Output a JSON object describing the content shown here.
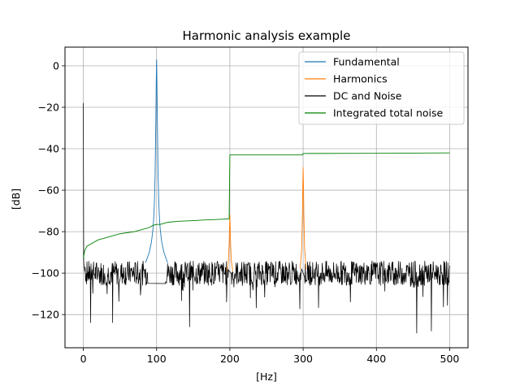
{
  "chart_data": {
    "type": "line",
    "title": "Harmonic analysis example",
    "xlabel": "[Hz]",
    "ylabel": "[dB]",
    "xlim": [
      -25,
      525
    ],
    "ylim": [
      -136,
      9
    ],
    "xticks": [
      0,
      100,
      200,
      300,
      400,
      500
    ],
    "xtick_labels": [
      "0",
      "100",
      "200",
      "300",
      "400",
      "500"
    ],
    "yticks": [
      0,
      -20,
      -40,
      -60,
      -80,
      -100,
      -120
    ],
    "ytick_labels": [
      "0",
      "−20",
      "−40",
      "−60",
      "−80",
      "−100",
      "−120"
    ],
    "grid": true,
    "legend_position": "top-right",
    "series": [
      {
        "name": "Fundamental",
        "color": "#1f77b4",
        "x": [
          85,
          90,
          93,
          95,
          96,
          97,
          98,
          99,
          99.5,
          100,
          100.5,
          101,
          102,
          103,
          104,
          105,
          107,
          110,
          115
        ],
        "values": [
          -95,
          -90,
          -85,
          -79,
          -74,
          -66,
          -52,
          -25,
          -8,
          3,
          -8,
          -25,
          -52,
          -66,
          -74,
          -79,
          -85,
          -90,
          -95
        ]
      },
      {
        "name": "Harmonics",
        "color": "#ff7f0e",
        "x": [
          196,
          198,
          199,
          199.5,
          200,
          200.5,
          201,
          202,
          204,
          296,
          298,
          299,
          299.5,
          300,
          300.5,
          301,
          302,
          304
        ],
        "values": [
          -99,
          -94,
          -86,
          -78,
          -72,
          -78,
          -86,
          -94,
          -99,
          -98,
          -88,
          -72,
          -58,
          -49,
          -58,
          -72,
          -88,
          -98
        ]
      },
      {
        "name": "DC and Noise",
        "color": "#000000",
        "description_points": {
          "dc_peak": [
            0,
            -18
          ],
          "noise_floor_mean": -100,
          "notable_dips": [
            [
              10,
              -124
            ],
            [
              40,
              -124
            ],
            [
              145,
              -126
            ],
            [
              455,
              -129
            ],
            [
              475,
              -128
            ]
          ]
        }
      },
      {
        "name": "Integrated total noise",
        "color": "#008000",
        "x": [
          0,
          2,
          5,
          10,
          20,
          30,
          40,
          50,
          60,
          70,
          80,
          90,
          95,
          100,
          105,
          110,
          115,
          130,
          150,
          170,
          190,
          199,
          200,
          201,
          250,
          299,
          300,
          301,
          400,
          500
        ],
        "values": [
          -93,
          -89,
          -87,
          -86,
          -84,
          -83,
          -82,
          -81,
          -80.5,
          -80,
          -79,
          -78,
          -77,
          -76.5,
          -76.5,
          -76,
          -75.5,
          -75,
          -74.7,
          -74.3,
          -74,
          -73.8,
          -43,
          -43,
          -43,
          -43,
          -42.3,
          -42.3,
          -42.2,
          -42
        ]
      }
    ]
  }
}
